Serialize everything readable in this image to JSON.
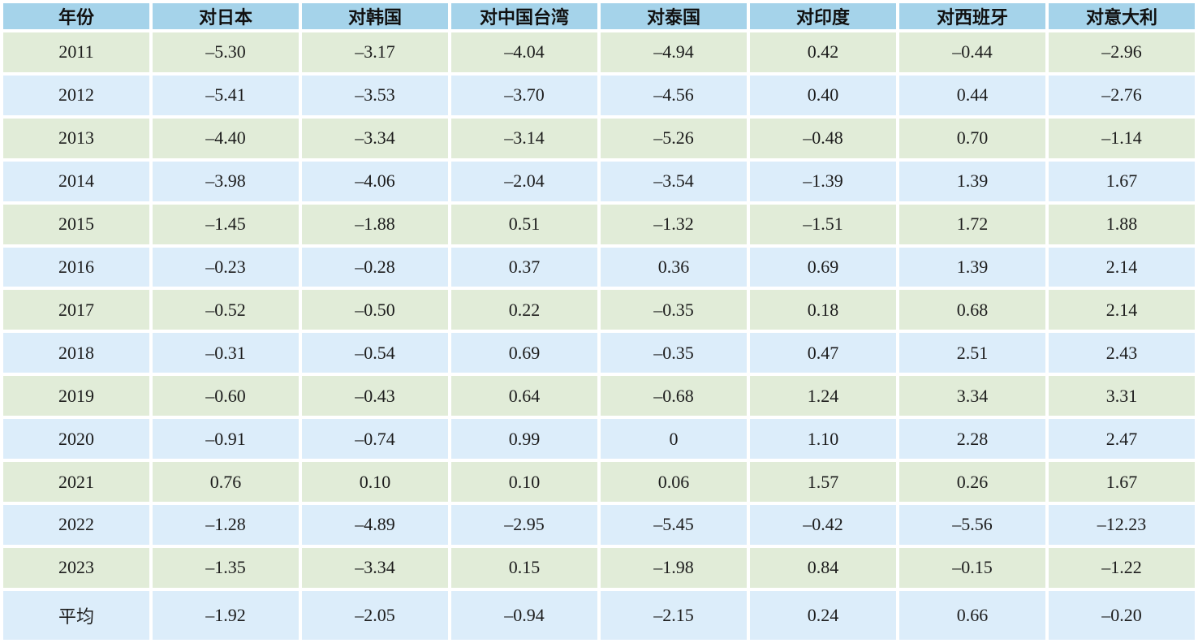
{
  "table": {
    "columns": [
      "年份",
      "对日本",
      "对韩国",
      "对中国台湾",
      "对泰国",
      "对印度",
      "对西班牙",
      "对意大利"
    ],
    "rows": [
      {
        "label": "2011",
        "values": [
          "–5.30",
          "–3.17",
          "–4.04",
          "–4.94",
          "0.42",
          "–0.44",
          "–2.96"
        ]
      },
      {
        "label": "2012",
        "values": [
          "–5.41",
          "–3.53",
          "–3.70",
          "–4.56",
          "0.40",
          "0.44",
          "–2.76"
        ]
      },
      {
        "label": "2013",
        "values": [
          "–4.40",
          "–3.34",
          "–3.14",
          "–5.26",
          "–0.48",
          "0.70",
          "–1.14"
        ]
      },
      {
        "label": "2014",
        "values": [
          "–3.98",
          "–4.06",
          "–2.04",
          "–3.54",
          "–1.39",
          "1.39",
          "1.67"
        ]
      },
      {
        "label": "2015",
        "values": [
          "–1.45",
          "–1.88",
          "0.51",
          "–1.32",
          "–1.51",
          "1.72",
          "1.88"
        ]
      },
      {
        "label": "2016",
        "values": [
          "–0.23",
          "–0.28",
          "0.37",
          "0.36",
          "0.69",
          "1.39",
          "2.14"
        ]
      },
      {
        "label": "2017",
        "values": [
          "–0.52",
          "–0.50",
          "0.22",
          "–0.35",
          "0.18",
          "0.68",
          "2.14"
        ]
      },
      {
        "label": "2018",
        "values": [
          "–0.31",
          "–0.54",
          "0.69",
          "–0.35",
          "0.47",
          "2.51",
          "2.43"
        ]
      },
      {
        "label": "2019",
        "values": [
          "–0.60",
          "–0.43",
          "0.64",
          "–0.68",
          "1.24",
          "3.34",
          "3.31"
        ]
      },
      {
        "label": "2020",
        "values": [
          "–0.91",
          "–0.74",
          "0.99",
          "0",
          "1.10",
          "2.28",
          "2.47"
        ]
      },
      {
        "label": "2021",
        "values": [
          "0.76",
          "0.10",
          "0.10",
          "0.06",
          "1.57",
          "0.26",
          "1.67"
        ]
      },
      {
        "label": "2022",
        "values": [
          "–1.28",
          "–4.89",
          "–2.95",
          "–5.45",
          "–0.42",
          "–5.56",
          "–12.23"
        ]
      },
      {
        "label": "2023",
        "values": [
          "–1.35",
          "–3.34",
          "0.15",
          "–1.98",
          "0.84",
          "–0.15",
          "–1.22"
        ]
      },
      {
        "label": "平均",
        "values": [
          "–1.92",
          "–2.05",
          "–0.94",
          "–2.15",
          "0.24",
          "0.66",
          "–0.20"
        ]
      }
    ],
    "colors": {
      "header_bg": "#a5d3ea",
      "row_green": "#e1ecd8",
      "row_blue": "#dcedfa",
      "gap": "#ffffff",
      "text": "#1c1c1c"
    }
  },
  "chart_data": {
    "type": "table",
    "title": "",
    "categories": [
      "2011",
      "2012",
      "2013",
      "2014",
      "2015",
      "2016",
      "2017",
      "2018",
      "2019",
      "2020",
      "2021",
      "2022",
      "2023",
      "平均"
    ],
    "series": [
      {
        "name": "对日本",
        "values": [
          -5.3,
          -5.41,
          -4.4,
          -3.98,
          -1.45,
          -0.23,
          -0.52,
          -0.31,
          -0.6,
          -0.91,
          0.76,
          -1.28,
          -1.35,
          -1.92
        ]
      },
      {
        "name": "对韩国",
        "values": [
          -3.17,
          -3.53,
          -3.34,
          -4.06,
          -1.88,
          -0.28,
          -0.5,
          -0.54,
          -0.43,
          -0.74,
          0.1,
          -4.89,
          -3.34,
          -2.05
        ]
      },
      {
        "name": "对中国台湾",
        "values": [
          -4.04,
          -3.7,
          -3.14,
          -2.04,
          0.51,
          0.37,
          0.22,
          0.69,
          0.64,
          0.99,
          0.1,
          -2.95,
          0.15,
          -0.94
        ]
      },
      {
        "name": "对泰国",
        "values": [
          -4.94,
          -4.56,
          -5.26,
          -3.54,
          -1.32,
          0.36,
          -0.35,
          -0.35,
          -0.68,
          0,
          0.06,
          -5.45,
          -1.98,
          -2.15
        ]
      },
      {
        "name": "对印度",
        "values": [
          0.42,
          0.4,
          -0.48,
          -1.39,
          -1.51,
          0.69,
          0.18,
          0.47,
          1.24,
          1.1,
          1.57,
          -0.42,
          0.84,
          0.24
        ]
      },
      {
        "name": "对西班牙",
        "values": [
          -0.44,
          0.44,
          0.7,
          1.39,
          1.72,
          1.39,
          0.68,
          2.51,
          3.34,
          2.28,
          0.26,
          -5.56,
          -0.15,
          0.66
        ]
      },
      {
        "name": "对意大利",
        "values": [
          -2.96,
          -2.76,
          -1.14,
          1.67,
          1.88,
          2.14,
          2.14,
          2.43,
          3.31,
          2.47,
          1.67,
          -12.23,
          -1.22,
          -0.2
        ]
      }
    ]
  }
}
